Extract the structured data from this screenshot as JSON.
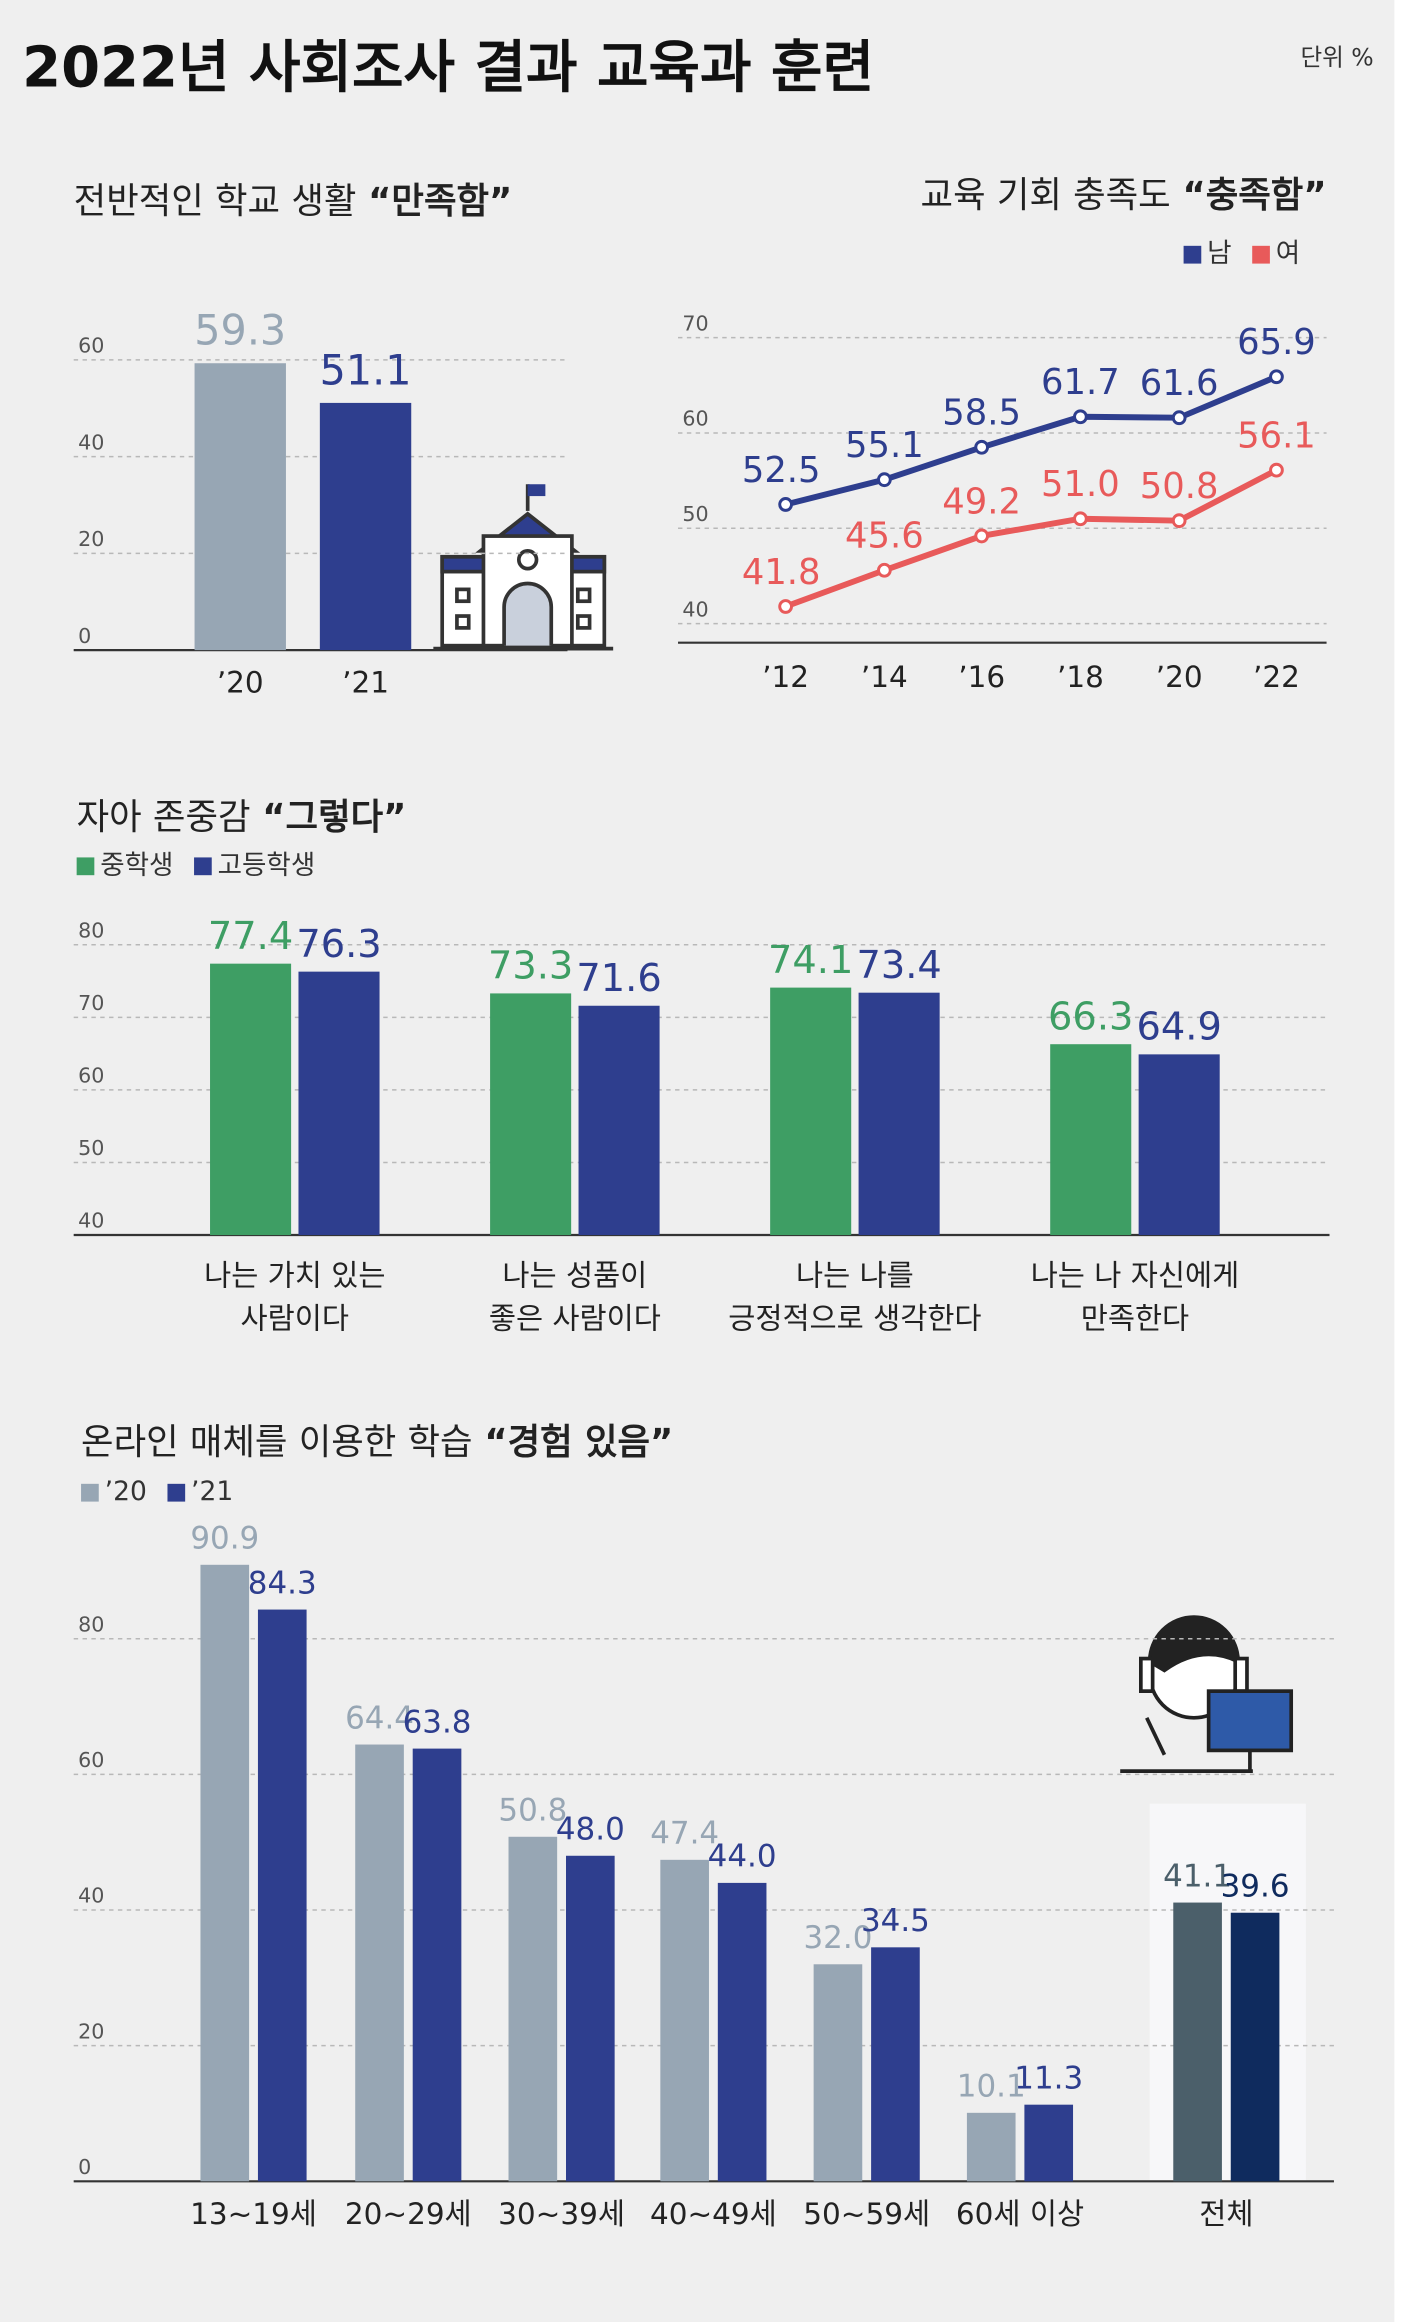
{
  "title": "2022년 사회조사 결과 교육과 훈련",
  "unit": "단위 %",
  "chart_data": [
    {
      "type": "bar",
      "title": "전반적인 학교 생활",
      "highlight": "“만족함”",
      "categories": [
        "’20",
        "’21"
      ],
      "values": [
        59.3,
        51.1
      ],
      "colors": [
        "#97a6b4",
        "#2e3e8e"
      ],
      "ylim": [
        0,
        60
      ],
      "yticks": [
        0,
        20,
        40,
        60
      ],
      "grid": true
    },
    {
      "type": "line",
      "title": "교육 기회 충족도",
      "highlight": "“충족함”",
      "categories": [
        "’12",
        "’14",
        "’16",
        "’18",
        "’20",
        "’22"
      ],
      "series": [
        {
          "name": "남",
          "color": "#2e3e8e",
          "values": [
            52.5,
            55.1,
            58.5,
            61.7,
            61.6,
            65.9
          ]
        },
        {
          "name": "여",
          "color": "#e85a5a",
          "values": [
            41.8,
            45.6,
            49.2,
            51.0,
            50.8,
            56.1
          ],
          "value_labels": [
            "41.8",
            "45.6",
            "49.2",
            "51.0",
            "50.8",
            "56.1"
          ]
        }
      ],
      "ylim": [
        38,
        70
      ],
      "yticks": [
        40,
        50,
        60,
        70
      ],
      "grid": true,
      "legend": "top-right"
    },
    {
      "type": "grouped-bar",
      "title": "자아 존중감",
      "highlight": "“그렇다”",
      "categories": [
        "나는 가치 있는\n사람이다",
        "나는 성품이\n좋은 사람이다",
        "나는 나를\n긍정적으로 생각한다",
        "나는 나 자신에게\n만족한다"
      ],
      "series": [
        {
          "name": "중학생",
          "color": "#3e9e64",
          "values": [
            77.4,
            73.3,
            74.1,
            66.3
          ]
        },
        {
          "name": "고등학생",
          "color": "#2e3e8e",
          "values": [
            76.3,
            71.6,
            73.4,
            64.9
          ]
        }
      ],
      "ylim": [
        40,
        80
      ],
      "yticks": [
        40,
        50,
        60,
        70,
        80
      ],
      "grid": true,
      "legend": "top-left"
    },
    {
      "type": "grouped-bar",
      "title": "온라인 매체를 이용한 학습",
      "highlight": "“경험 있음”",
      "categories": [
        "13~19세",
        "20~29세",
        "30~39세",
        "40~49세",
        "50~59세",
        "60세 이상",
        "전체"
      ],
      "series": [
        {
          "name": "’20",
          "color": "#97a6b4",
          "highlight_color": "#4b5f6a",
          "values": [
            90.9,
            64.4,
            50.8,
            47.4,
            32.0,
            10.1,
            41.1
          ],
          "value_labels": [
            "90.9",
            "64.4",
            "50.8",
            "47.4",
            "32.0",
            "10.1",
            "41.1"
          ]
        },
        {
          "name": "’21",
          "color": "#2e3e8e",
          "highlight_color": "#0f2b5e",
          "values": [
            84.3,
            63.8,
            48.0,
            44.0,
            34.5,
            11.3,
            39.6
          ],
          "value_labels": [
            "84.3",
            "63.8",
            "48.0",
            "44.0",
            "34.5",
            "11.3",
            "39.6"
          ]
        }
      ],
      "ylim": [
        0,
        100
      ],
      "yticks": [
        0,
        20,
        40,
        60,
        80
      ],
      "grid": true,
      "legend": "top-left"
    }
  ]
}
